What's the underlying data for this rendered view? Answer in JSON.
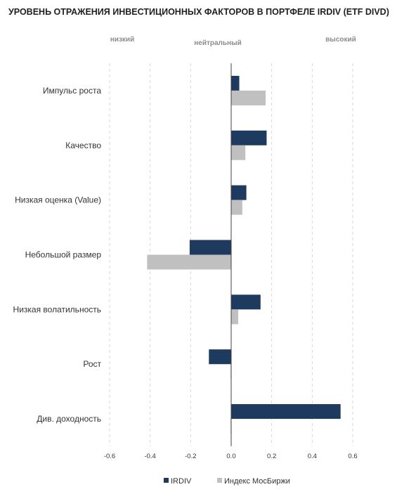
{
  "chart_data": {
    "type": "bar",
    "orientation": "horizontal",
    "title": "УРОВЕНЬ ОТРАЖЕНИЯ ИНВЕСТИЦИОННЫХ ФАКТОРОВ В ПОРТФЕЛЕ IRDIV (ETF DIVD)",
    "zone_labels": [
      "низкий",
      "нейтральный",
      "высокий"
    ],
    "categories": [
      "Импульс роста",
      "Качество",
      "Низкая оценка (Value)",
      "Небольшой размер",
      "Низкая волатильность",
      "Рост",
      "Див. доходность"
    ],
    "series": [
      {
        "name": "IRDIV",
        "color": "#1f3a5f",
        "values": [
          0.04,
          0.175,
          0.075,
          -0.205,
          0.145,
          -0.11,
          0.54
        ]
      },
      {
        "name": "Индекс  МосБиржи",
        "color": "#c0c0c0",
        "values": [
          0.17,
          0.07,
          0.055,
          -0.415,
          0.035,
          -0.003,
          -0.003
        ]
      }
    ],
    "xlim": [
      -0.6,
      0.6
    ],
    "xticks": [
      "-0.6",
      "-0.4",
      "-0.2",
      "0.0",
      "0.2",
      "0.4",
      "0.6"
    ],
    "grid": "vertical dashed",
    "legend": "bottom-center"
  }
}
